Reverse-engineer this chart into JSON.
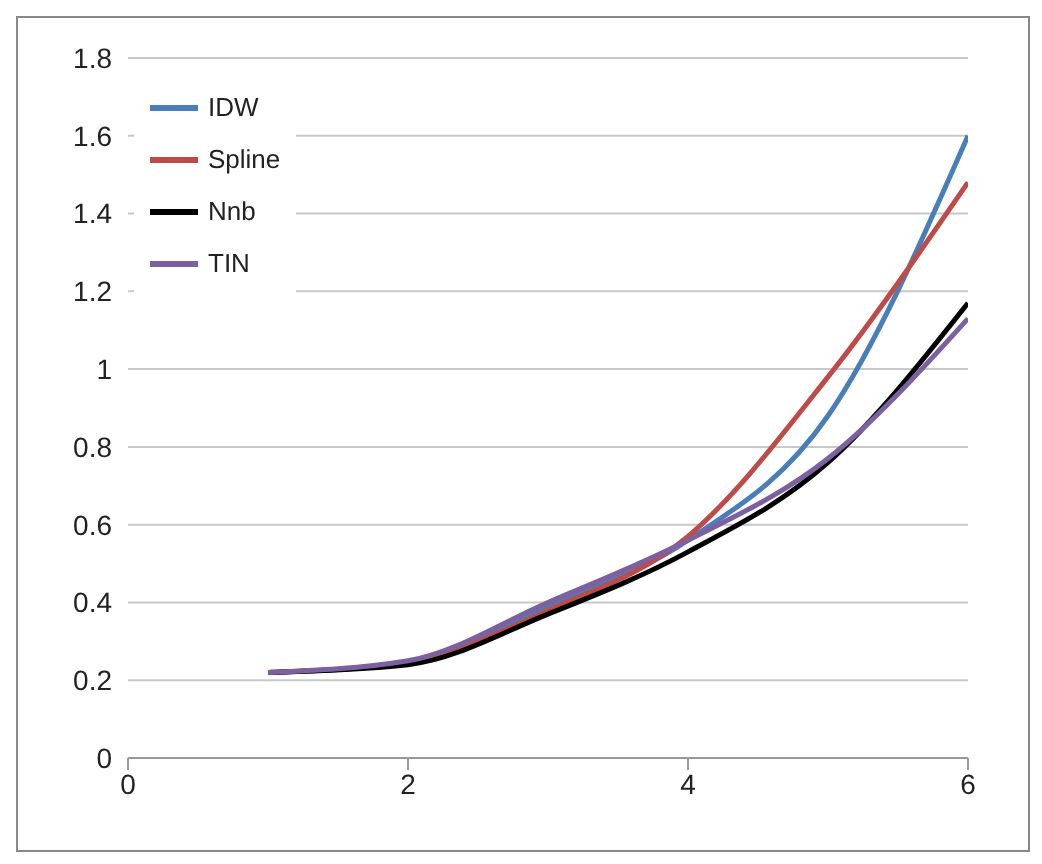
{
  "chart_data": {
    "type": "line",
    "x": [
      1,
      2,
      3,
      4,
      5,
      6
    ],
    "series": [
      {
        "name": "IDW",
        "color": "#4a7ebb",
        "values": [
          0.22,
          0.245,
          0.39,
          0.56,
          0.88,
          1.6
        ]
      },
      {
        "name": "Spline",
        "color": "#be4b48",
        "values": [
          0.22,
          0.245,
          0.38,
          0.57,
          0.98,
          1.48
        ]
      },
      {
        "name": "Nnb",
        "color": "#000000",
        "values": [
          0.22,
          0.24,
          0.37,
          0.53,
          0.76,
          1.17
        ]
      },
      {
        "name": "TIN",
        "color": "#7d60a0",
        "values": [
          0.22,
          0.25,
          0.4,
          0.56,
          0.77,
          1.13
        ]
      }
    ],
    "xlim": [
      0,
      6
    ],
    "xticks": [
      0,
      2,
      4,
      6
    ],
    "ylim": [
      0,
      1.8
    ],
    "yticks": [
      0,
      0.2,
      0.4,
      0.6,
      0.8,
      1,
      1.2,
      1.4,
      1.6,
      1.8
    ],
    "grid": "y",
    "legend": "top left",
    "marker": "none",
    "line_style": "solid"
  }
}
